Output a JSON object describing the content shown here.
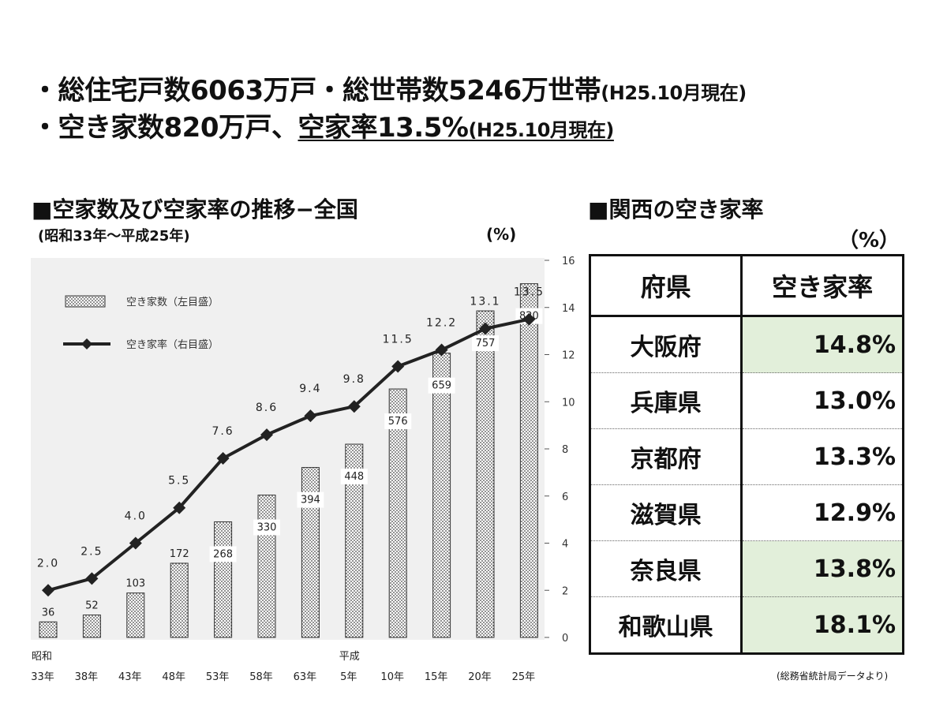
{
  "headline": {
    "line1": {
      "main": "・総住宅戸数6063万戸・総世帯数5246万世帯",
      "note": "(H25.10月現在)"
    },
    "line2": {
      "part1": "・空き家数820万戸、",
      "part2": "空家率13.5%",
      "note": "(H25.10月現在)"
    }
  },
  "chart_data": {
    "type": "bar",
    "title": "■空家数及び空家率の推移−全国",
    "subtitle": "(昭和33年～平成25年)",
    "era_labels": {
      "showa": "昭和",
      "heisei": "平成"
    },
    "categories": [
      "33年",
      "38年",
      "43年",
      "48年",
      "53年",
      "58年",
      "63年",
      "5年",
      "10年",
      "15年",
      "20年",
      "25年"
    ],
    "series": [
      {
        "name": "空き家数（左目盛）",
        "type": "bar",
        "axis": "left",
        "values": [
          36,
          52,
          103,
          172,
          268,
          330,
          394,
          448,
          576,
          659,
          757,
          820
        ]
      },
      {
        "name": "空き家率（右目盛）",
        "type": "line",
        "axis": "right",
        "values": [
          2.0,
          2.5,
          4.0,
          5.5,
          7.6,
          8.6,
          9.4,
          9.8,
          11.5,
          12.2,
          13.1,
          13.5
        ]
      }
    ],
    "y_left_range": [
      0,
      820
    ],
    "y2_label": "(%)",
    "y2_ticks": [
      "0",
      "2",
      "4",
      "6",
      "8",
      "10",
      "12",
      "14",
      "16"
    ],
    "y2_range": [
      0,
      16
    ],
    "bar_pattern": "dotted",
    "line_color": "#222222",
    "legend_position": "top-left"
  },
  "kansai": {
    "title": "■関西の空き家率",
    "unit": "（%）",
    "headers": {
      "pref": "府県",
      "rate": "空き家率"
    },
    "rows": [
      {
        "pref": "大阪府",
        "rate": "14.8%",
        "highlight": true
      },
      {
        "pref": "兵庫県",
        "rate": "13.0%",
        "highlight": false
      },
      {
        "pref": "京都府",
        "rate": "13.3%",
        "highlight": false
      },
      {
        "pref": "滋賀県",
        "rate": "12.9%",
        "highlight": false
      },
      {
        "pref": "奈良県",
        "rate": "13.8%",
        "highlight": true
      },
      {
        "pref": "和歌山県",
        "rate": "18.1%",
        "highlight": true
      }
    ],
    "highlight_color": "#e2efda"
  },
  "source_note": "(総務省統計局データより)"
}
